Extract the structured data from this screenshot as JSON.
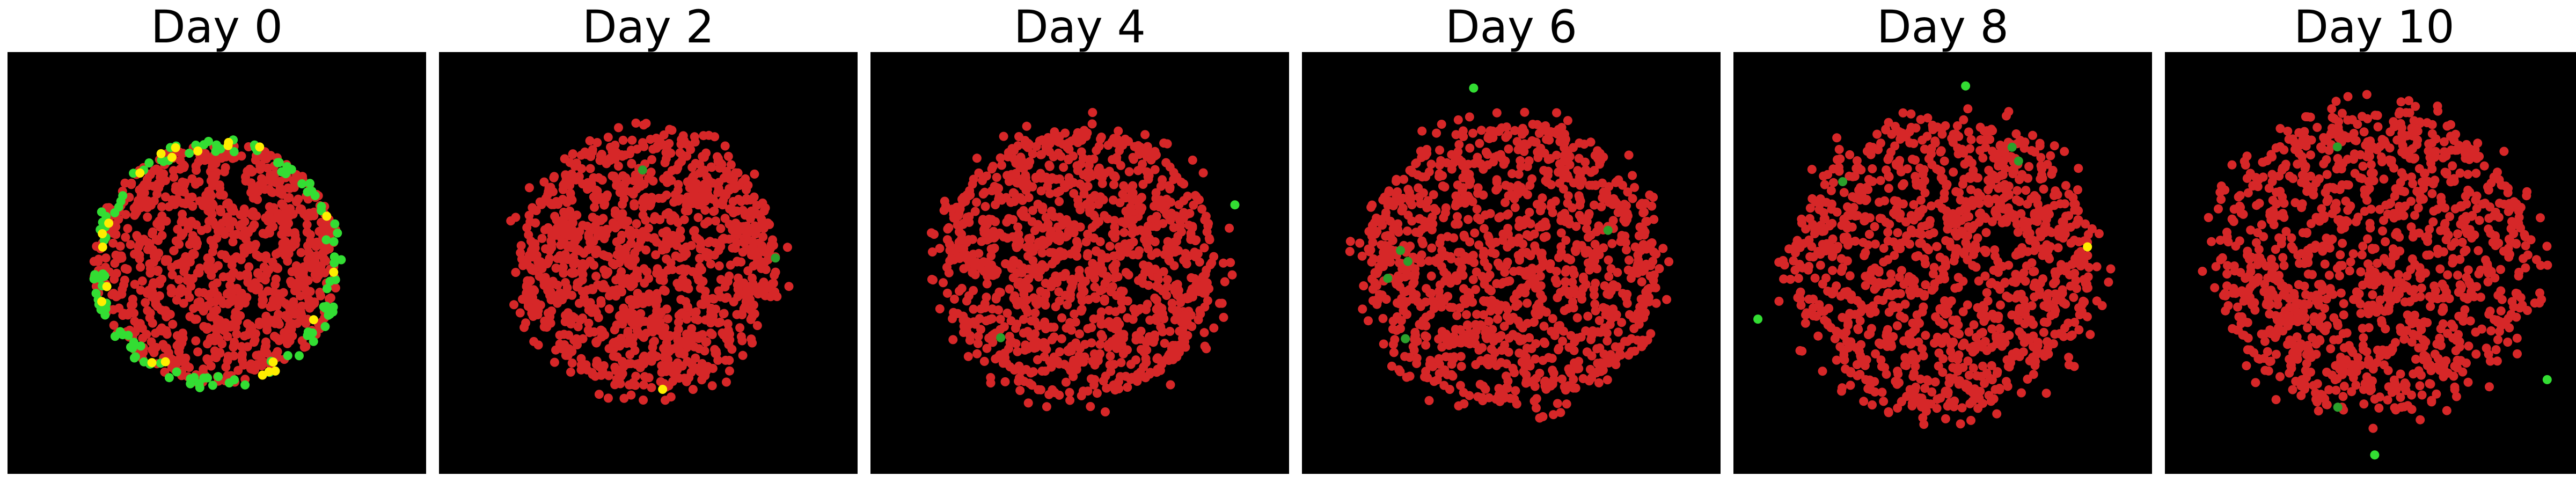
{
  "figure": {
    "panels": [
      {
        "title": "Day 0",
        "spread": 0.96,
        "red_count": 950,
        "green_count": 115,
        "yellow_count": 22,
        "stray_green": 0
      },
      {
        "title": "Day 2",
        "spread": 1.0,
        "red_count": 1150,
        "green_count": 2,
        "yellow_count": 1,
        "stray_green": 0
      },
      {
        "title": "Day 4",
        "spread": 1.06,
        "red_count": 1150,
        "green_count": 1,
        "yellow_count": 0,
        "stray_green": 1
      },
      {
        "title": "Day 6",
        "spread": 1.12,
        "red_count": 1150,
        "green_count": 5,
        "yellow_count": 0,
        "stray_green": 1
      },
      {
        "title": "Day 8",
        "spread": 1.16,
        "red_count": 1150,
        "green_count": 3,
        "yellow_count": 1,
        "stray_green": 2
      },
      {
        "title": "Day 10",
        "spread": 1.2,
        "red_count": 1150,
        "green_count": 2,
        "yellow_count": 0,
        "stray_green": 2
      }
    ],
    "colors": {
      "background": "#000000",
      "red_cell": "#d62728",
      "green_cell": "#2ca02c",
      "bright_green_cell": "#33dd33",
      "yellow_cell": "#ffee00"
    }
  }
}
